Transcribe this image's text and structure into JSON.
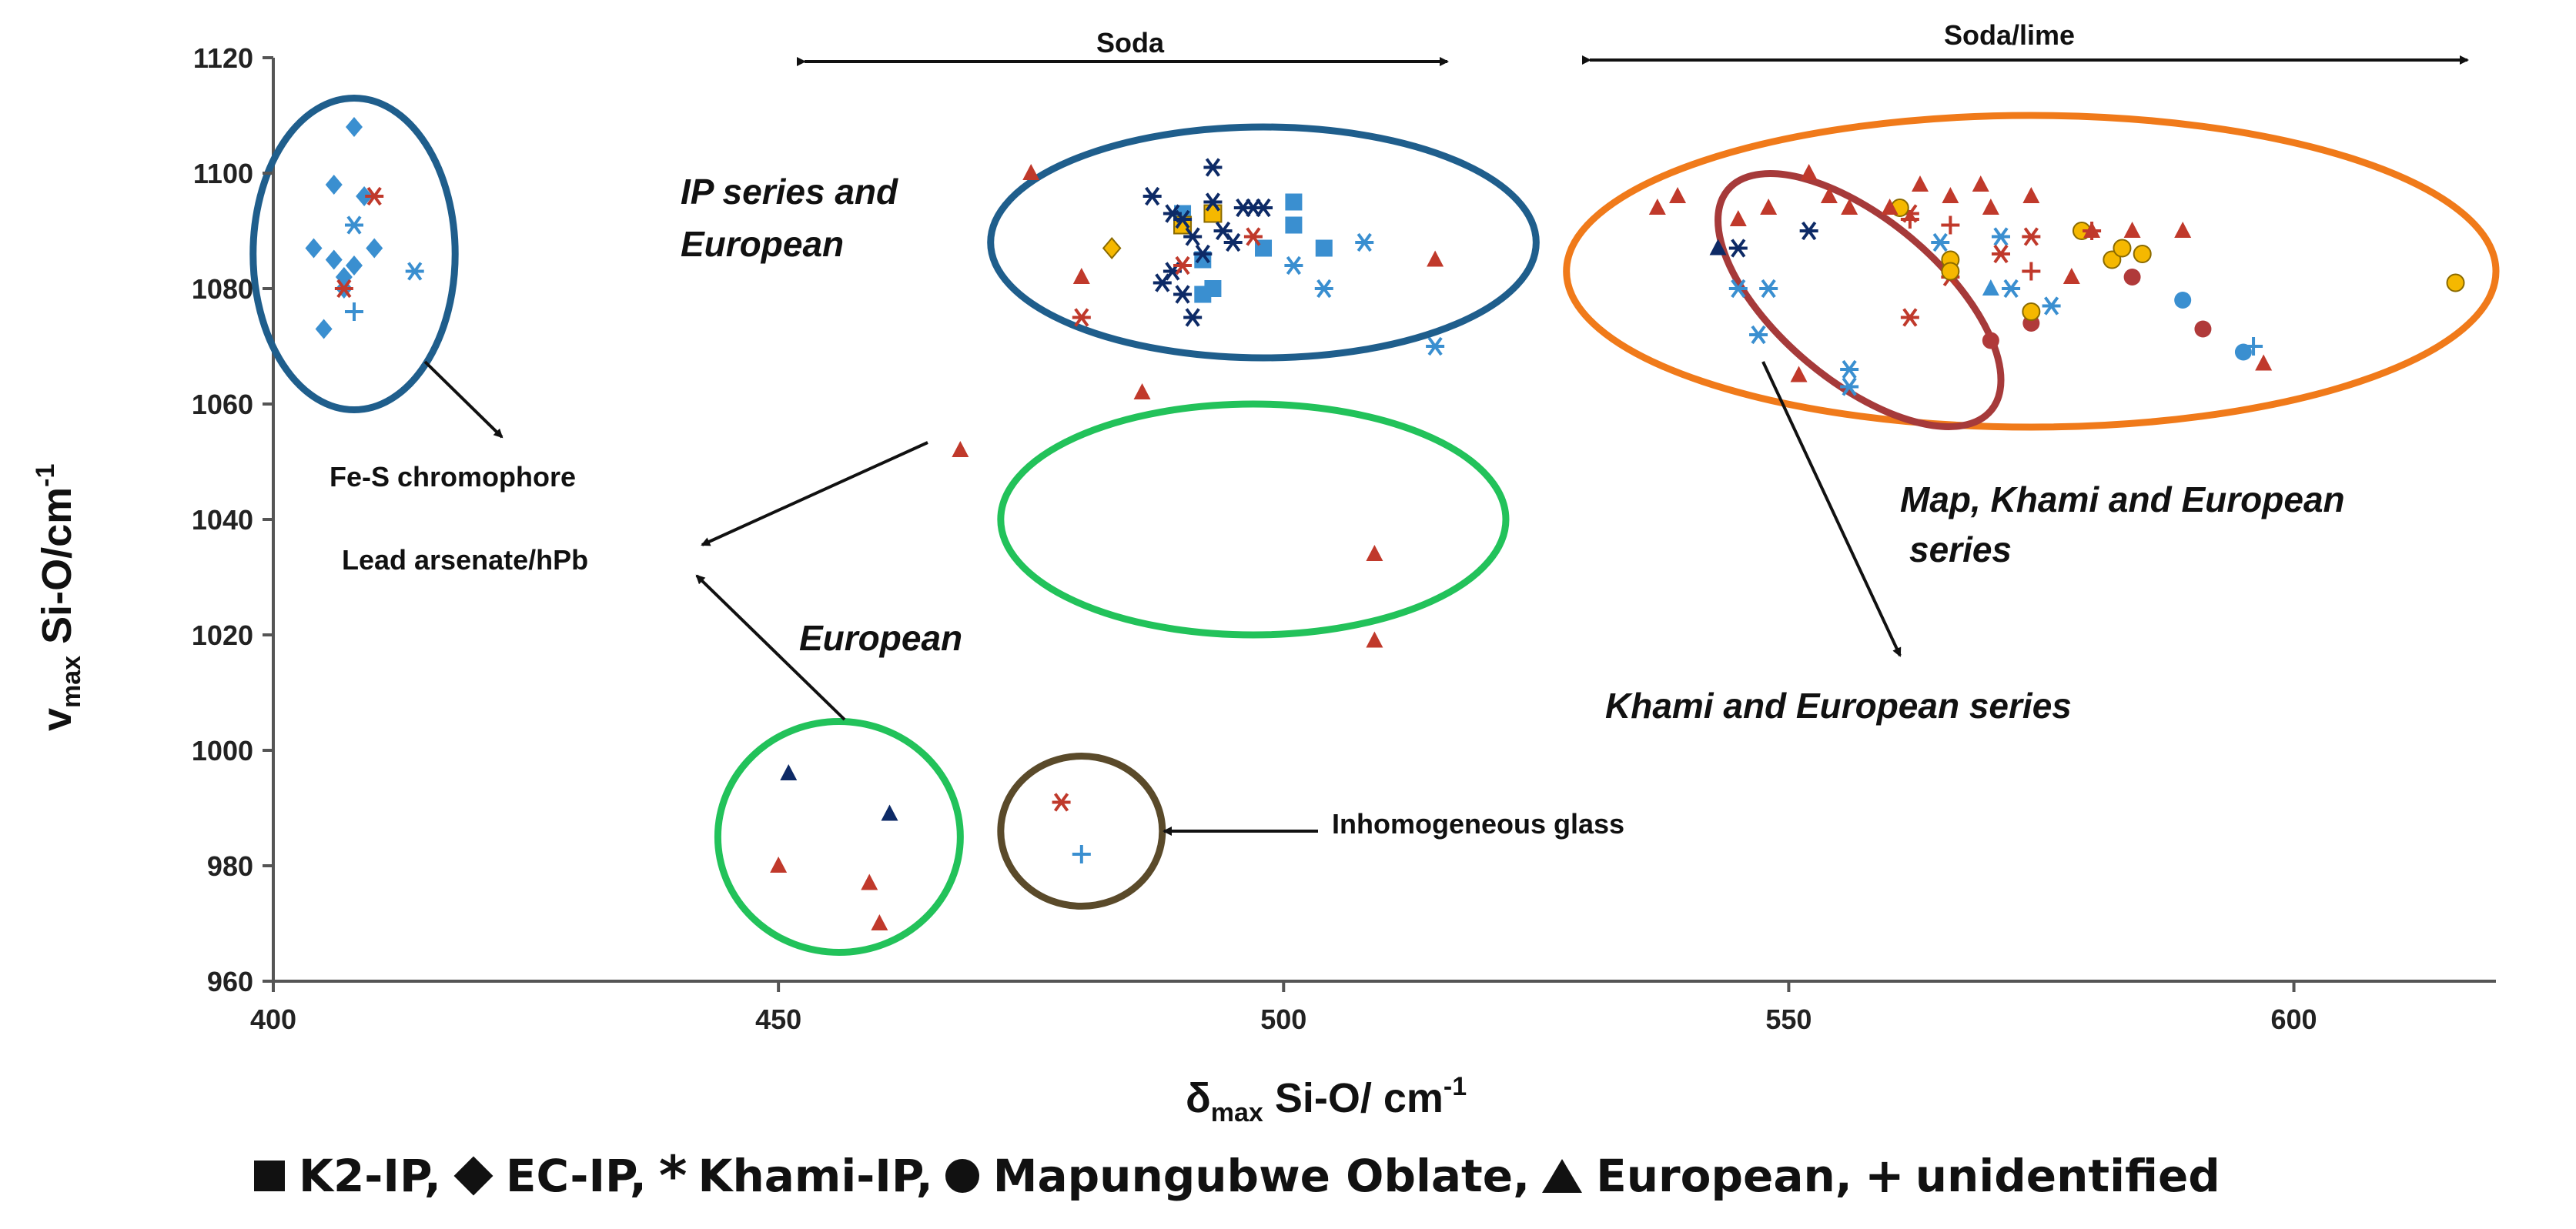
{
  "chart_data": {
    "type": "scatter",
    "xlabel_main": "δ",
    "xlabel_sub": "max",
    "xlabel_rest": " Si-O/ cm",
    "xlabel_sup": "-1",
    "ylabel_main": "v",
    "ylabel_sub": "max",
    "ylabel_rest": " Si-O/cm",
    "ylabel_sup": "-1",
    "xlim": [
      400,
      620
    ],
    "ylim": [
      960,
      1120
    ],
    "xticks": [
      "400",
      "450",
      "500",
      "550",
      "600"
    ],
    "xtick_values": [
      400,
      450,
      500,
      550,
      600
    ],
    "yticks": [
      "960",
      "980",
      "1000",
      "1020",
      "1040",
      "1060",
      "1080",
      "1100",
      "1120"
    ],
    "ytick_values": [
      960,
      980,
      1000,
      1020,
      1040,
      1060,
      1080,
      1100,
      1120
    ],
    "series": [
      {
        "name": "K2-IP",
        "marker": "square",
        "color": "#3a8fd0",
        "points": [
          [
            490,
            1093
          ],
          [
            492,
            1085
          ],
          [
            492,
            1079
          ],
          [
            493,
            1080
          ],
          [
            498,
            1087
          ],
          [
            501,
            1095
          ],
          [
            501,
            1091
          ],
          [
            504,
            1087
          ]
        ]
      },
      {
        "name": "K2-IP (highlighted)",
        "marker": "square",
        "color": "#f5b800",
        "points": [
          [
            490,
            1091
          ],
          [
            493,
            1093
          ]
        ]
      },
      {
        "name": "EC-IP",
        "marker": "diamond",
        "color": "#3a8fd0",
        "points": [
          [
            404,
            1087
          ],
          [
            405,
            1073
          ],
          [
            406,
            1098
          ],
          [
            406,
            1085
          ],
          [
            407,
            1082
          ],
          [
            408,
            1108
          ],
          [
            408,
            1084
          ],
          [
            409,
            1096
          ],
          [
            410,
            1087
          ],
          [
            407,
            1080
          ]
        ]
      },
      {
        "name": "EC-IP (highlighted)",
        "marker": "diamond",
        "color": "#f5b800",
        "points": [
          [
            483,
            1087
          ]
        ]
      },
      {
        "name": "Khami-IP (dark blue)",
        "marker": "asterisk",
        "color": "#0d2a66",
        "points": [
          [
            487,
            1096
          ],
          [
            488,
            1081
          ],
          [
            489,
            1093
          ],
          [
            489,
            1083
          ],
          [
            490,
            1092
          ],
          [
            490,
            1079
          ],
          [
            491,
            1075
          ],
          [
            491,
            1089
          ],
          [
            492,
            1086
          ],
          [
            493,
            1101
          ],
          [
            493,
            1095
          ],
          [
            494,
            1090
          ],
          [
            495,
            1088
          ],
          [
            496,
            1094
          ],
          [
            497,
            1094
          ],
          [
            498,
            1094
          ],
          [
            552,
            1090
          ],
          [
            545,
            1087
          ]
        ]
      },
      {
        "name": "Khami-IP (light blue)",
        "marker": "asterisk",
        "color": "#3a8fd0",
        "points": [
          [
            408,
            1091
          ],
          [
            414,
            1083
          ],
          [
            501,
            1084
          ],
          [
            504,
            1080
          ],
          [
            508,
            1088
          ],
          [
            515,
            1070
          ],
          [
            545,
            1080
          ],
          [
            547,
            1072
          ],
          [
            548,
            1080
          ],
          [
            556,
            1066
          ],
          [
            556,
            1063
          ],
          [
            565,
            1088
          ],
          [
            571,
            1089
          ],
          [
            572,
            1080
          ],
          [
            576,
            1077
          ]
        ]
      },
      {
        "name": "Khami-IP (red)",
        "marker": "asterisk",
        "color": "#c0392b",
        "points": [
          [
            410,
            1096
          ],
          [
            407,
            1080
          ],
          [
            480,
            1075
          ],
          [
            490,
            1084
          ],
          [
            497,
            1089
          ],
          [
            478,
            991
          ],
          [
            562,
            1075
          ],
          [
            566,
            1082
          ],
          [
            571,
            1086
          ],
          [
            574,
            1089
          ],
          [
            562,
            1093
          ]
        ]
      },
      {
        "name": "Mapungubwe Oblate (red)",
        "marker": "circle",
        "color": "#b03a3a",
        "points": [
          [
            570,
            1071
          ],
          [
            574,
            1074
          ],
          [
            584,
            1082
          ],
          [
            591,
            1073
          ]
        ]
      },
      {
        "name": "Mapungubwe Oblate (blue)",
        "marker": "circle",
        "color": "#3a8fd0",
        "points": [
          [
            589,
            1078
          ],
          [
            595,
            1069
          ]
        ]
      },
      {
        "name": "Mapungubwe Oblate (yellow)",
        "marker": "circle",
        "color": "#f5b800",
        "points": [
          [
            566,
            1085
          ],
          [
            566,
            1083
          ],
          [
            574,
            1076
          ],
          [
            579,
            1090
          ],
          [
            582,
            1085
          ],
          [
            583,
            1087
          ],
          [
            585,
            1086
          ],
          [
            616,
            1081
          ],
          [
            561,
            1094
          ]
        ]
      },
      {
        "name": "European (red)",
        "marker": "triangle",
        "color": "#c0392b",
        "points": [
          [
            475,
            1100
          ],
          [
            480,
            1082
          ],
          [
            486,
            1062
          ],
          [
            468,
            1052
          ],
          [
            509,
            1034
          ],
          [
            509,
            1019
          ],
          [
            515,
            1085
          ],
          [
            450,
            980
          ],
          [
            459,
            977
          ],
          [
            460,
            970
          ],
          [
            537,
            1094
          ],
          [
            539,
            1096
          ],
          [
            545,
            1092
          ],
          [
            552,
            1100
          ],
          [
            554,
            1096
          ],
          [
            556,
            1094
          ],
          [
            560,
            1094
          ],
          [
            563,
            1098
          ],
          [
            566,
            1096
          ],
          [
            569,
            1098
          ],
          [
            570,
            1094
          ],
          [
            574,
            1096
          ],
          [
            578,
            1082
          ],
          [
            580,
            1090
          ],
          [
            584,
            1090
          ],
          [
            589,
            1090
          ],
          [
            597,
            1067
          ],
          [
            551,
            1065
          ],
          [
            548,
            1094
          ]
        ]
      },
      {
        "name": "European (dark blue)",
        "marker": "triangle",
        "color": "#0d2a66",
        "points": [
          [
            451,
            996
          ],
          [
            461,
            989
          ],
          [
            543,
            1087
          ]
        ]
      },
      {
        "name": "European (light blue)",
        "marker": "triangle",
        "color": "#3a8fd0",
        "points": [
          [
            570,
            1080
          ]
        ]
      },
      {
        "name": "unidentified (blue)",
        "marker": "plus",
        "color": "#3a8fd0",
        "points": [
          [
            408,
            1076
          ],
          [
            480,
            982
          ],
          [
            596,
            1070
          ]
        ]
      },
      {
        "name": "unidentified (red)",
        "marker": "plus",
        "color": "#c0392b",
        "points": [
          [
            566,
            1091
          ],
          [
            574,
            1083
          ],
          [
            580,
            1090
          ],
          [
            562,
            1092
          ]
        ]
      }
    ],
    "ellipses": [
      {
        "name": "fe-s-ellipse",
        "cx": 408,
        "cy": 1086,
        "rx": 10,
        "ry": 27,
        "color": "#1f5e8c"
      },
      {
        "name": "ip-european-ellipse",
        "cx": 498,
        "cy": 1088,
        "rx": 27,
        "ry": 20,
        "color": "#1f5e8c"
      },
      {
        "name": "map-khami-european-ellipse",
        "cx": 574,
        "cy": 1083,
        "rx": 46,
        "ry": 27,
        "color": "#f07a1a"
      },
      {
        "name": "khami-european-ellipse",
        "cx": 557,
        "cy": 1078,
        "rx": 17,
        "ry": 14,
        "rotate": 40,
        "color": "#a63a3a"
      },
      {
        "name": "european-ellipse",
        "cx": 497,
        "cy": 1040,
        "rx": 25,
        "ry": 20,
        "color": "#22c25a"
      },
      {
        "name": "lead-arsenate-ellipse",
        "cx": 456,
        "cy": 985,
        "rx": 12,
        "ry": 20,
        "color": "#22c25a"
      },
      {
        "name": "inhomogeneous-ellipse",
        "cx": 480,
        "cy": 986,
        "rx": 8,
        "ry": 13,
        "color": "#5a4a2a"
      }
    ],
    "annotations": {
      "soda": "Soda",
      "soda_lime": "Soda/lime",
      "ip_series_line1": "IP series and",
      "ip_series_line2": "European",
      "fe_s": "Fe-S chromophore",
      "lead_arsenate": "Lead arsenate/hPb",
      "european": "European",
      "inhomogeneous": "Inhomogeneous glass",
      "map_khami_line1": "Map, Khami and European",
      "map_khami_line2": "series",
      "khami_european": "Khami and European series"
    }
  },
  "legend": {
    "items": [
      {
        "symbol": "square",
        "label": "K2-IP,"
      },
      {
        "symbol": "diamond",
        "label": "EC-IP,"
      },
      {
        "symbol": "asterisk",
        "label": "Khami-IP,"
      },
      {
        "symbol": "circle",
        "label": "Mapungubwe Oblate,"
      },
      {
        "symbol": "triangle",
        "label": "European,"
      },
      {
        "symbol": "plus",
        "label": "unidentified"
      }
    ],
    "asterisk_glyph": "*",
    "plus_glyph": "+"
  }
}
